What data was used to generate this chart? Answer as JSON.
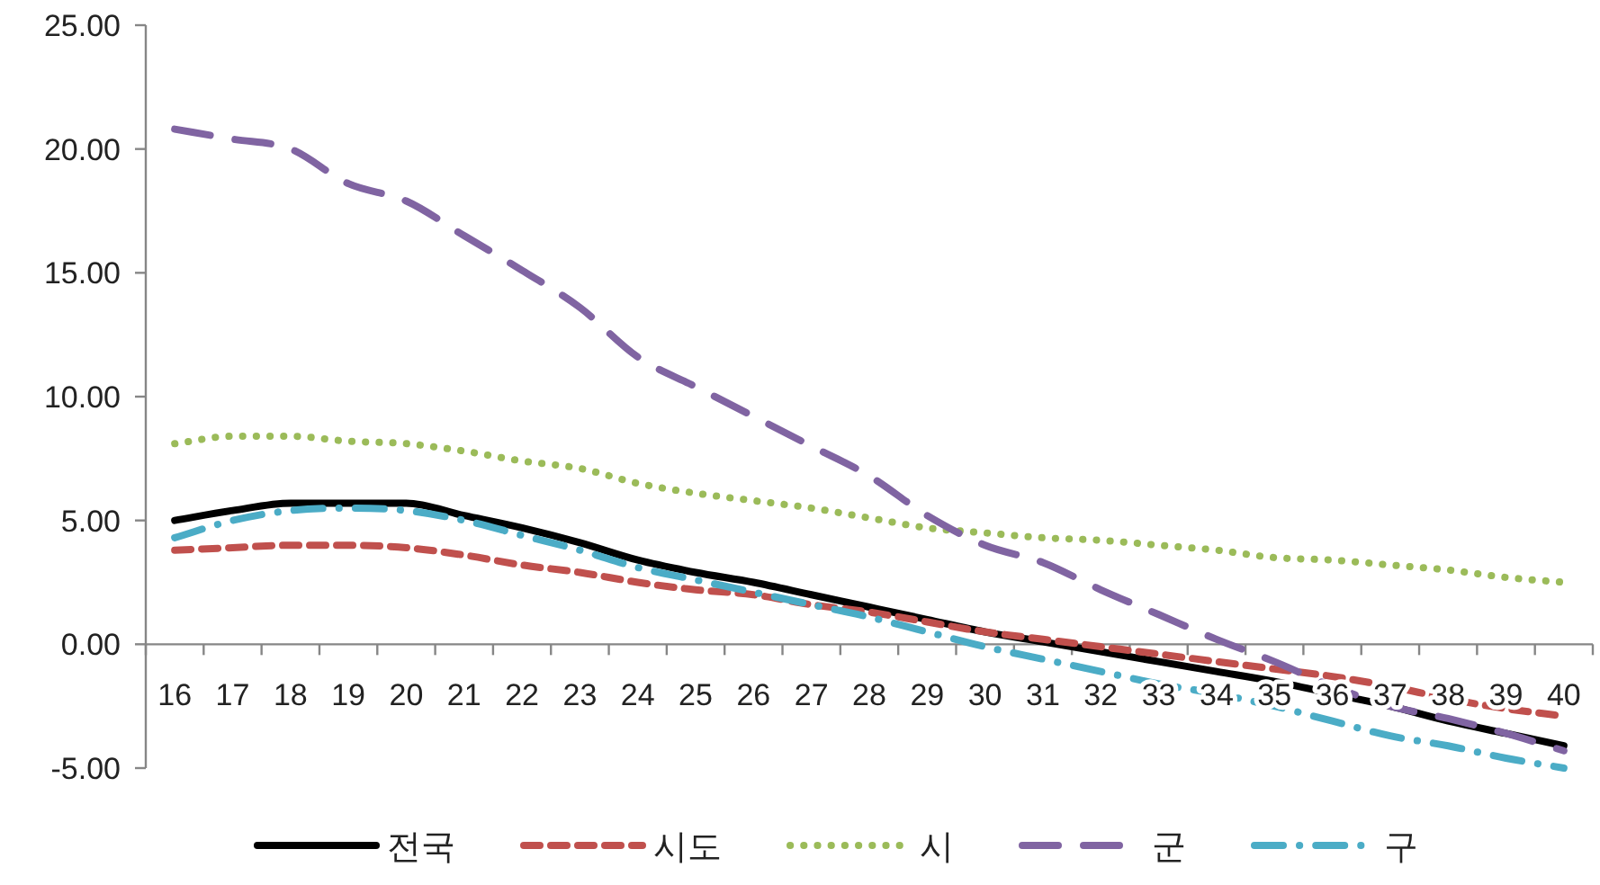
{
  "chart_data": {
    "type": "line",
    "categories": [
      "16",
      "17",
      "18",
      "19",
      "20",
      "21",
      "22",
      "23",
      "24",
      "25",
      "26",
      "27",
      "28",
      "29",
      "30",
      "31",
      "32",
      "33",
      "34",
      "35",
      "36",
      "37",
      "38",
      "39",
      "40"
    ],
    "ylim": [
      -5,
      25
    ],
    "yticks": [
      {
        "value": -5,
        "label": "-5.00"
      },
      {
        "value": 0,
        "label": "0.00"
      },
      {
        "value": 5,
        "label": "5.00"
      },
      {
        "value": 10,
        "label": "10.00"
      },
      {
        "value": 15,
        "label": "15.00"
      },
      {
        "value": 20,
        "label": "20.00"
      },
      {
        "value": 25,
        "label": "25.00"
      }
    ],
    "grid": false,
    "legend": "bottom",
    "series": [
      {
        "name": "전국",
        "color": "#000000",
        "line_style": "solid",
        "values": [
          5.0,
          5.4,
          5.7,
          5.7,
          5.7,
          5.2,
          4.7,
          4.1,
          3.4,
          2.9,
          2.5,
          2.0,
          1.5,
          1.0,
          0.5,
          0.1,
          -0.3,
          -0.7,
          -1.1,
          -1.5,
          -2.0,
          -2.5,
          -3.1,
          -3.6,
          -4.1
        ]
      },
      {
        "name": "시도",
        "color": "#c0504d",
        "line_style": "dashed",
        "values": [
          3.8,
          3.9,
          4.0,
          4.0,
          3.9,
          3.6,
          3.2,
          2.9,
          2.5,
          2.2,
          2.0,
          1.6,
          1.3,
          0.9,
          0.5,
          0.2,
          -0.1,
          -0.4,
          -0.7,
          -1.0,
          -1.3,
          -1.7,
          -2.2,
          -2.6,
          -2.9
        ]
      },
      {
        "name": "시",
        "color": "#9bbb59",
        "line_style": "dotted",
        "values": [
          8.1,
          8.4,
          8.4,
          8.2,
          8.1,
          7.8,
          7.4,
          7.1,
          6.5,
          6.1,
          5.8,
          5.5,
          5.1,
          4.7,
          4.5,
          4.3,
          4.2,
          4.0,
          3.8,
          3.5,
          3.4,
          3.2,
          3.0,
          2.7,
          2.5
        ]
      },
      {
        "name": "군",
        "color": "#8064a2",
        "line_style": "longdash",
        "values": [
          20.8,
          20.4,
          20.0,
          18.6,
          17.9,
          16.5,
          15.1,
          13.6,
          11.6,
          10.4,
          9.2,
          8.0,
          6.8,
          5.2,
          4.0,
          3.3,
          2.2,
          1.2,
          0.2,
          -0.7,
          -1.7,
          -2.5,
          -3.0,
          -3.6,
          -4.3
        ]
      },
      {
        "name": "구",
        "color": "#4bacc6",
        "line_style": "dashdot",
        "values": [
          4.3,
          5.0,
          5.4,
          5.5,
          5.4,
          5.0,
          4.4,
          3.8,
          3.1,
          2.6,
          2.1,
          1.6,
          1.1,
          0.5,
          -0.1,
          -0.6,
          -1.1,
          -1.6,
          -2.0,
          -2.5,
          -3.1,
          -3.7,
          -4.1,
          -4.6,
          -5.0
        ]
      }
    ]
  }
}
